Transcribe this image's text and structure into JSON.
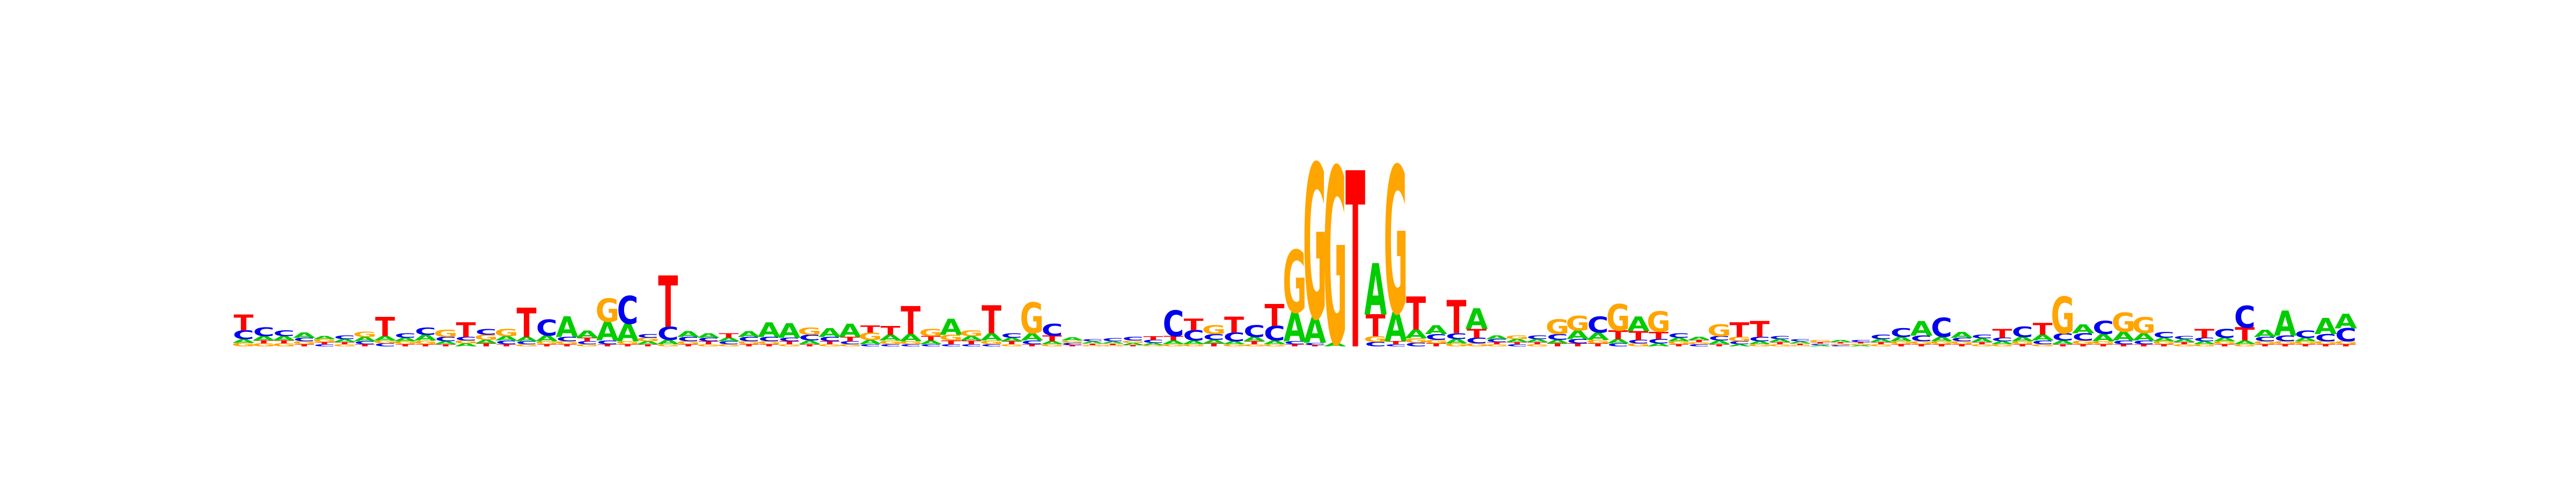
{
  "chart_data": {
    "type": "sequence-logo",
    "title": "",
    "xlabel": "",
    "ylabel": "",
    "colors": {
      "A": "#00cc00",
      "C": "#0000ee",
      "G": "#ffa500",
      "T": "#ff0000"
    },
    "positions": [
      {
        "T": 0.22,
        "C": 0.12,
        "G": 0.05,
        "A": 0.05
      },
      {
        "C": 0.12,
        "A": 0.06,
        "G": 0.04,
        "T": 0.04
      },
      {
        "C": 0.08,
        "A": 0.06,
        "G": 0.04,
        "T": 0.04
      },
      {
        "A": 0.07,
        "C": 0.05,
        "G": 0.04,
        "T": 0.03
      },
      {
        "G": 0.04,
        "A": 0.04,
        "C": 0.03,
        "T": 0.03
      },
      {
        "C": 0.05,
        "A": 0.04,
        "G": 0.03,
        "T": 0.03
      },
      {
        "G": 0.07,
        "A": 0.06,
        "C": 0.04,
        "T": 0.03
      },
      {
        "T": 0.26,
        "A": 0.06,
        "C": 0.04,
        "G": 0.04
      },
      {
        "C": 0.06,
        "A": 0.05,
        "G": 0.04,
        "T": 0.03
      },
      {
        "C": 0.1,
        "A": 0.08,
        "G": 0.05,
        "T": 0.03
      },
      {
        "G": 0.1,
        "C": 0.06,
        "A": 0.04,
        "T": 0.03
      },
      {
        "T": 0.2,
        "C": 0.05,
        "A": 0.04,
        "G": 0.04
      },
      {
        "C": 0.08,
        "G": 0.07,
        "A": 0.05,
        "T": 0.04
      },
      {
        "G": 0.1,
        "A": 0.06,
        "C": 0.05,
        "T": 0.03
      },
      {
        "T": 0.4,
        "A": 0.06,
        "C": 0.04,
        "G": 0.03
      },
      {
        "C": 0.22,
        "A": 0.08,
        "G": 0.04,
        "T": 0.03
      },
      {
        "A": 0.28,
        "C": 0.06,
        "G": 0.04,
        "T": 0.03
      },
      {
        "A": 0.1,
        "T": 0.05,
        "C": 0.04,
        "G": 0.03
      },
      {
        "G": 0.32,
        "A": 0.26,
        "C": 0.05,
        "T": 0.03
      },
      {
        "C": 0.38,
        "A": 0.24,
        "G": 0.04,
        "T": 0.03
      },
      {
        "G": 0.05,
        "C": 0.05,
        "A": 0.04,
        "T": 0.03
      },
      {
        "T": 0.7,
        "C": 0.18,
        "A": 0.06,
        "G": 0.03
      },
      {
        "A": 0.08,
        "C": 0.06,
        "G": 0.04,
        "T": 0.03
      },
      {
        "A": 0.06,
        "C": 0.05,
        "T": 0.04,
        "G": 0.03
      },
      {
        "T": 0.06,
        "A": 0.05,
        "C": 0.04,
        "G": 0.03
      },
      {
        "A": 0.08,
        "C": 0.06,
        "G": 0.04,
        "T": 0.03
      },
      {
        "A": 0.2,
        "C": 0.06,
        "G": 0.04,
        "T": 0.03
      },
      {
        "A": 0.2,
        "C": 0.05,
        "T": 0.04,
        "G": 0.03
      },
      {
        "G": 0.1,
        "C": 0.08,
        "A": 0.05,
        "T": 0.03
      },
      {
        "A": 0.12,
        "C": 0.06,
        "T": 0.04,
        "G": 0.03
      },
      {
        "A": 0.18,
        "T": 0.06,
        "C": 0.04,
        "G": 0.03
      },
      {
        "G": 0.1,
        "T": 0.1,
        "A": 0.06,
        "C": 0.03
      },
      {
        "T": 0.12,
        "A": 0.08,
        "G": 0.05,
        "C": 0.03
      },
      {
        "T": 0.38,
        "A": 0.1,
        "G": 0.04,
        "C": 0.03
      },
      {
        "G": 0.1,
        "T": 0.06,
        "A": 0.05,
        "C": 0.03
      },
      {
        "A": 0.22,
        "G": 0.08,
        "T": 0.05,
        "C": 0.03
      },
      {
        "G": 0.08,
        "A": 0.06,
        "T": 0.05,
        "C": 0.03
      },
      {
        "T": 0.38,
        "A": 0.1,
        "G": 0.05,
        "C": 0.03
      },
      {
        "C": 0.06,
        "A": 0.05,
        "T": 0.04,
        "G": 0.03
      },
      {
        "G": 0.42,
        "A": 0.1,
        "C": 0.05,
        "T": 0.03
      },
      {
        "C": 0.16,
        "T": 0.08,
        "A": 0.04,
        "G": 0.03
      },
      {
        "A": 0.04,
        "C": 0.03,
        "G": 0.03,
        "T": 0.02
      },
      {
        "A": 0.03,
        "C": 0.03,
        "G": 0.02,
        "T": 0.02
      },
      {
        "C": 0.04,
        "A": 0.03,
        "G": 0.02,
        "T": 0.02
      },
      {
        "C": 0.05,
        "A": 0.03,
        "G": 0.03,
        "T": 0.02
      },
      {
        "T": 0.05,
        "C": 0.04,
        "A": 0.03,
        "G": 0.02
      },
      {
        "C": 0.35,
        "T": 0.06,
        "A": 0.05,
        "G": 0.03
      },
      {
        "T": 0.16,
        "C": 0.14,
        "A": 0.05,
        "G": 0.03
      },
      {
        "G": 0.12,
        "C": 0.08,
        "A": 0.05,
        "T": 0.04
      },
      {
        "T": 0.22,
        "C": 0.12,
        "A": 0.04,
        "G": 0.03
      },
      {
        "C": 0.16,
        "A": 0.06,
        "T": 0.04,
        "G": 0.03
      },
      {
        "T": 0.3,
        "C": 0.2,
        "A": 0.05,
        "G": 0.03
      },
      {
        "G": 0.85,
        "A": 0.4,
        "C": 0.04,
        "T": 0.03
      },
      {
        "G": 2.1,
        "A": 0.35,
        "C": 0.03,
        "T": 0.02
      },
      {
        "G": 2.4,
        "A": 0.05
      },
      {
        "T": 2.4
      },
      {
        "A": 0.7,
        "T": 0.3,
        "G": 0.08,
        "C": 0.06
      },
      {
        "G": 2.0,
        "A": 0.4,
        "T": 0.04,
        "C": 0.03
      },
      {
        "T": 0.45,
        "A": 0.12,
        "G": 0.06,
        "C": 0.05
      },
      {
        "A": 0.12,
        "C": 0.08,
        "G": 0.05,
        "T": 0.04
      },
      {
        "T": 0.45,
        "C": 0.08,
        "A": 0.06,
        "G": 0.04
      },
      {
        "A": 0.28,
        "T": 0.12,
        "C": 0.08,
        "G": 0.04
      },
      {
        "A": 0.05,
        "C": 0.04,
        "G": 0.03,
        "T": 0.03
      },
      {
        "G": 0.05,
        "A": 0.04,
        "C": 0.03,
        "T": 0.03
      },
      {
        "C": 0.05,
        "A": 0.04,
        "G": 0.03,
        "T": 0.03
      },
      {
        "G": 0.2,
        "C": 0.08,
        "A": 0.05,
        "T": 0.04
      },
      {
        "G": 0.2,
        "A": 0.12,
        "C": 0.06,
        "T": 0.04
      },
      {
        "C": 0.22,
        "A": 0.1,
        "G": 0.05,
        "T": 0.04
      },
      {
        "G": 0.36,
        "T": 0.12,
        "A": 0.06,
        "C": 0.04
      },
      {
        "A": 0.2,
        "T": 0.12,
        "C": 0.05,
        "G": 0.04
      },
      {
        "G": 0.28,
        "T": 0.1,
        "C": 0.06,
        "A": 0.04
      },
      {
        "C": 0.06,
        "A": 0.05,
        "G": 0.04,
        "T": 0.03
      },
      {
        "A": 0.04,
        "C": 0.03,
        "G": 0.03,
        "T": 0.03
      },
      {
        "G": 0.16,
        "C": 0.06,
        "A": 0.05,
        "T": 0.03
      },
      {
        "T": 0.2,
        "G": 0.06,
        "C": 0.04,
        "A": 0.03
      },
      {
        "T": 0.22,
        "C": 0.06,
        "A": 0.04,
        "G": 0.03
      },
      {
        "A": 0.04,
        "C": 0.04,
        "G": 0.03,
        "T": 0.03
      },
      {
        "A": 0.03,
        "C": 0.03,
        "G": 0.02,
        "T": 0.02
      },
      {
        "G": 0.03,
        "A": 0.02,
        "C": 0.02,
        "T": 0.02
      },
      {
        "A": 0.03,
        "C": 0.02,
        "G": 0.02,
        "T": 0.02
      },
      {
        "C": 0.03,
        "A": 0.02,
        "G": 0.02,
        "T": 0.02
      },
      {
        "C": 0.06,
        "A": 0.04,
        "G": 0.03,
        "T": 0.03
      },
      {
        "C": 0.12,
        "A": 0.06,
        "G": 0.04,
        "T": 0.03
      },
      {
        "A": 0.2,
        "C": 0.08,
        "G": 0.04,
        "T": 0.03
      },
      {
        "C": 0.26,
        "A": 0.06,
        "G": 0.04,
        "T": 0.03
      },
      {
        "A": 0.08,
        "C": 0.05,
        "G": 0.04,
        "T": 0.03
      },
      {
        "A": 0.05,
        "C": 0.05,
        "G": 0.03,
        "T": 0.03
      },
      {
        "T": 0.12,
        "C": 0.05,
        "A": 0.04,
        "G": 0.03
      },
      {
        "C": 0.14,
        "A": 0.06,
        "G": 0.04,
        "T": 0.03
      },
      {
        "T": 0.16,
        "A": 0.08,
        "C": 0.05,
        "G": 0.03
      },
      {
        "G": 0.5,
        "C": 0.1,
        "A": 0.05,
        "T": 0.03
      },
      {
        "A": 0.12,
        "C": 0.1,
        "G": 0.05,
        "T": 0.03
      },
      {
        "C": 0.18,
        "A": 0.1,
        "G": 0.04,
        "T": 0.03
      },
      {
        "G": 0.26,
        "A": 0.12,
        "C": 0.05,
        "T": 0.03
      },
      {
        "G": 0.22,
        "A": 0.1,
        "C": 0.05,
        "T": 0.03
      },
      {
        "C": 0.08,
        "A": 0.05,
        "G": 0.04,
        "T": 0.03
      },
      {
        "A": 0.04,
        "C": 0.04,
        "G": 0.03,
        "T": 0.03
      },
      {
        "T": 0.12,
        "C": 0.05,
        "A": 0.04,
        "G": 0.03
      },
      {
        "C": 0.12,
        "A": 0.05,
        "G": 0.04,
        "T": 0.03
      },
      {
        "C": 0.3,
        "T": 0.18,
        "A": 0.05,
        "G": 0.03
      },
      {
        "A": 0.1,
        "C": 0.06,
        "G": 0.04,
        "T": 0.03
      },
      {
        "A": 0.34,
        "C": 0.08,
        "G": 0.04,
        "T": 0.03
      },
      {
        "C": 0.1,
        "A": 0.05,
        "G": 0.04,
        "T": 0.03
      },
      {
        "A": 0.22,
        "C": 0.1,
        "G": 0.04,
        "T": 0.03
      },
      {
        "C": 0.18,
        "A": 0.2,
        "G": 0.04,
        "T": 0.03
      }
    ]
  }
}
